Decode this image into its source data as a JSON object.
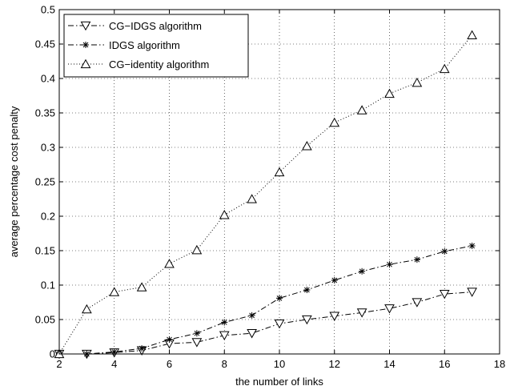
{
  "chart_data": {
    "type": "line",
    "title": "",
    "xlabel": "the number of links",
    "ylabel": "average percentage cost penalty",
    "xlim": [
      2,
      18
    ],
    "ylim": [
      0,
      0.5
    ],
    "xticks": [
      2,
      4,
      6,
      8,
      10,
      12,
      14,
      16,
      18
    ],
    "yticks": [
      0,
      0.05,
      0.1,
      0.15,
      0.2,
      0.25,
      0.3,
      0.35,
      0.4,
      0.45,
      0.5
    ],
    "ytick_labels": [
      "0",
      "0.05",
      "0.1",
      "0.15",
      "0.2",
      "0.25",
      "0.3",
      "0.35",
      "0.4",
      "0.45",
      "0.5"
    ],
    "grid": true,
    "legend_position": "top-left",
    "x": [
      2,
      3,
      4,
      5,
      6,
      7,
      8,
      9,
      10,
      11,
      12,
      13,
      14,
      15,
      16,
      17
    ],
    "series": [
      {
        "name": "CG−IDGS algorithm",
        "line_style": "dashdot",
        "marker": "triangle-down",
        "color": "#000000",
        "values": [
          0.0,
          0.0,
          0.002,
          0.005,
          0.015,
          0.017,
          0.027,
          0.03,
          0.044,
          0.05,
          0.055,
          0.06,
          0.066,
          0.075,
          0.087,
          0.09
        ]
      },
      {
        "name": "IDGS algorithm",
        "line_style": "dashdot",
        "marker": "star",
        "color": "#000000",
        "values": [
          0.0,
          0.0,
          0.003,
          0.008,
          0.021,
          0.03,
          0.046,
          0.056,
          0.081,
          0.093,
          0.107,
          0.12,
          0.13,
          0.137,
          0.149,
          0.157
        ]
      },
      {
        "name": "CG−identity algorithm",
        "line_style": "dotted",
        "marker": "triangle-up",
        "color": "#000000",
        "values": [
          0.0,
          0.065,
          0.09,
          0.097,
          0.131,
          0.151,
          0.202,
          0.225,
          0.264,
          0.302,
          0.336,
          0.354,
          0.378,
          0.394,
          0.414,
          0.463
        ]
      }
    ]
  }
}
